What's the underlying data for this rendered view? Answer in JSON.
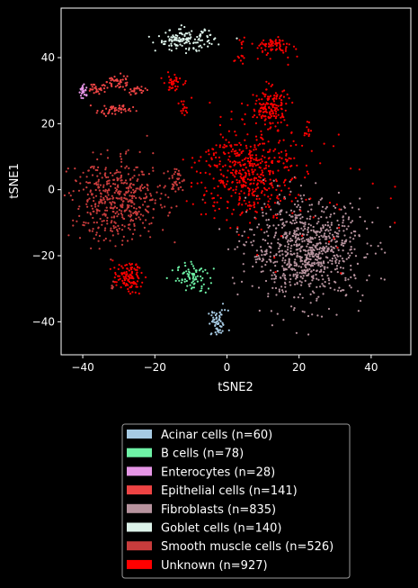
{
  "chart_data": {
    "type": "scatter",
    "title": "",
    "xlabel": "tSNE2",
    "ylabel": "tSNE1",
    "xlim": [
      -46,
      51
    ],
    "ylim": [
      -50,
      55
    ],
    "xticks": [
      -40,
      -20,
      0,
      20,
      40
    ],
    "yticks": [
      -40,
      -20,
      0,
      20,
      40
    ],
    "xtick_labels": [
      "−40",
      "−20",
      "0",
      "20",
      "40"
    ],
    "ytick_labels": [
      "−40",
      "−20",
      "0",
      "20",
      "40"
    ],
    "grid": false,
    "legend_position": "below",
    "series": [
      {
        "name": "Acinar cells (n=60)",
        "color": "#a6cae3",
        "n": 60,
        "clusters": [
          {
            "cx": -2.5,
            "cy": -40.5,
            "sx": 1.4,
            "sy": 2.0,
            "n": 60
          }
        ]
      },
      {
        "name": "B cells (n=78)",
        "color": "#6ef2a6",
        "n": 78,
        "clusters": [
          {
            "cx": -9.5,
            "cy": -26.5,
            "sx": 2.2,
            "sy": 2.2,
            "n": 78
          }
        ]
      },
      {
        "name": "Enterocytes (n=28)",
        "color": "#e696e6",
        "n": 28,
        "clusters": [
          {
            "cx": -39.8,
            "cy": 30.0,
            "sx": 0.6,
            "sy": 1.1,
            "n": 28
          }
        ]
      },
      {
        "name": "Epithelial cells (n=141)",
        "color": "#ee4444",
        "n": 141,
        "clusters": [
          {
            "cx": -35.5,
            "cy": 30.8,
            "sx": 1.5,
            "sy": 0.9,
            "n": 30
          },
          {
            "cx": -30.5,
            "cy": 32.8,
            "sx": 1.4,
            "sy": 1.3,
            "n": 40
          },
          {
            "cx": -31.0,
            "cy": 24.2,
            "sx": 2.5,
            "sy": 0.8,
            "n": 46
          },
          {
            "cx": -25.0,
            "cy": 30.0,
            "sx": 1.2,
            "sy": 0.6,
            "n": 25
          }
        ]
      },
      {
        "name": "Fibroblasts (n=835)",
        "color": "#b7939e",
        "n": 835,
        "clusters": [
          {
            "cx": 22.0,
            "cy": -18.5,
            "sx": 8.0,
            "sy": 7.5,
            "n": 835
          }
        ]
      },
      {
        "name": "Goblet cells (n=140)",
        "color": "#ddf3ea",
        "n": 140,
        "clusters": [
          {
            "cx": -11.5,
            "cy": 45.3,
            "sx": 4.0,
            "sy": 1.6,
            "n": 140
          }
        ]
      },
      {
        "name": "Smooth muscle cells (n=526)",
        "color": "#c83c3c",
        "n": 526,
        "clusters": [
          {
            "cx": -30.0,
            "cy": -3.5,
            "sx": 6.5,
            "sy": 6.0,
            "n": 480
          },
          {
            "cx": -31.5,
            "cy": -29.0,
            "sx": 0.5,
            "sy": 0.5,
            "n": 6
          },
          {
            "cx": -14.0,
            "cy": 3.0,
            "sx": 1.0,
            "sy": 2.0,
            "n": 40
          }
        ]
      },
      {
        "name": "Unknown (n=927)",
        "color": "#ff0000",
        "n": 927,
        "clusters": [
          {
            "cx": 5.5,
            "cy": 5.5,
            "sx": 6.5,
            "sy": 7.0,
            "n": 480
          },
          {
            "cx": 12.0,
            "cy": 25.0,
            "sx": 2.6,
            "sy": 3.0,
            "n": 150
          },
          {
            "cx": 12.5,
            "cy": 43.5,
            "sx": 3.0,
            "sy": 1.4,
            "n": 70
          },
          {
            "cx": -15.0,
            "cy": 32.5,
            "sx": 1.3,
            "sy": 1.2,
            "n": 40
          },
          {
            "cx": -12.0,
            "cy": 24.5,
            "sx": 0.6,
            "sy": 1.2,
            "n": 15
          },
          {
            "cx": -27.5,
            "cy": -26.5,
            "sx": 2.0,
            "sy": 2.2,
            "n": 110
          },
          {
            "cx": 22.5,
            "cy": 17.5,
            "sx": 0.8,
            "sy": 1.2,
            "n": 12
          },
          {
            "cx": 3.5,
            "cy": 40.0,
            "sx": 0.7,
            "sy": 1.0,
            "n": 10
          },
          {
            "cx": 4.0,
            "cy": 45.0,
            "sx": 0.4,
            "sy": 0.5,
            "n": 5
          },
          {
            "cx": 20.0,
            "cy": -4.0,
            "sx": 12.0,
            "sy": 10.0,
            "n": 35
          }
        ]
      }
    ]
  }
}
